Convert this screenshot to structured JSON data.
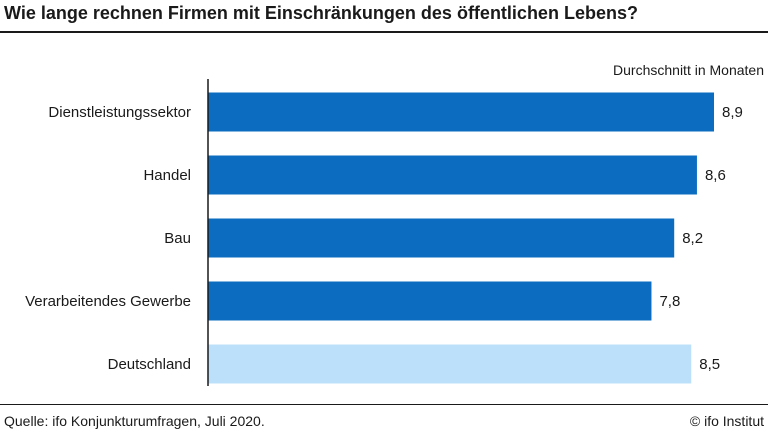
{
  "title": "Wie lange rechnen Firmen mit Einschränkungen des öffentlichen Lebens?",
  "source": "Quelle: ifo Konjunkturumfragen, Juli 2020.",
  "copyright": "© ifo Institut",
  "colors": {
    "primary_bar": "#0b6cc0",
    "highlight_bar": "#bde0fa",
    "axis": "#1a1a1a"
  },
  "chart_data": {
    "type": "bar",
    "orientation": "horizontal",
    "title": "Wie lange rechnen Firmen mit Einschränkungen des öffentlichen Lebens?",
    "unit_label": "Durchschnitt in Monaten",
    "xlabel": "Durchschnitt in Monaten",
    "ylabel": "",
    "xlim": [
      0,
      8.9
    ],
    "categories": [
      "Dienstleistungssektor",
      "Handel",
      "Bau",
      "Verarbeitendes Gewerbe",
      "Deutschland"
    ],
    "values": [
      8.9,
      8.6,
      8.2,
      7.8,
      8.5
    ],
    "value_labels": [
      "8,9",
      "8,6",
      "8,2",
      "7,8",
      "8,5"
    ],
    "highlight": [
      "Deutschland"
    ],
    "grid": false
  }
}
